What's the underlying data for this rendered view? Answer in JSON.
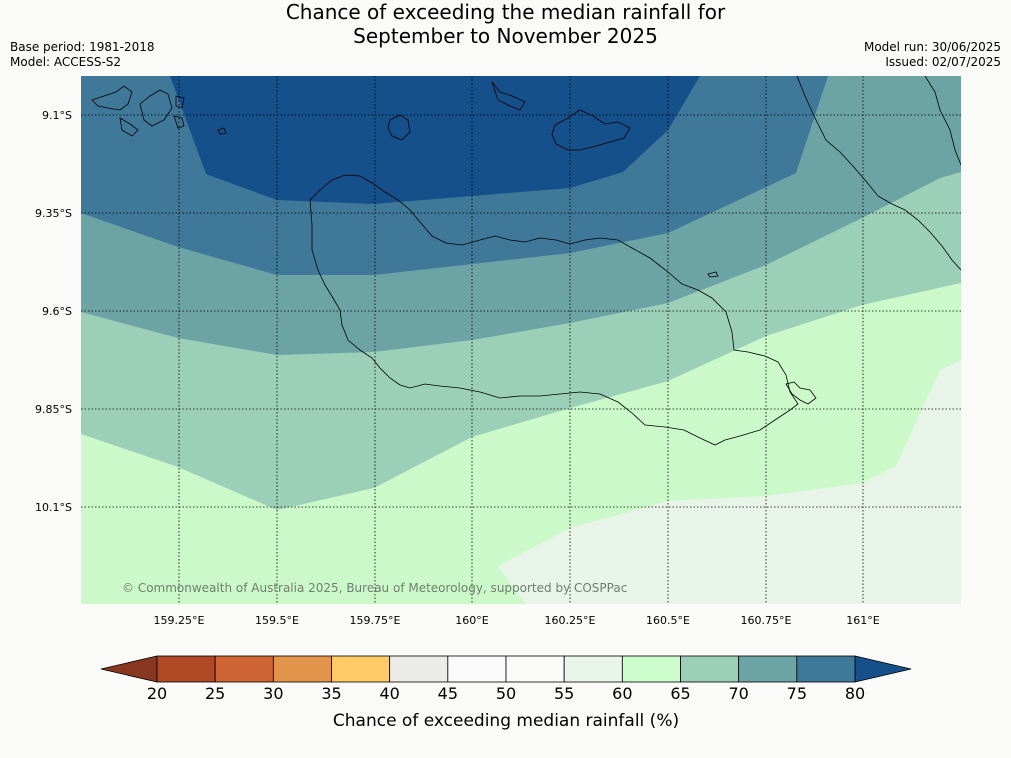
{
  "title": {
    "line1": "Chance of exceeding the median rainfall for",
    "line2": "September to November 2025"
  },
  "meta": {
    "base_period": "Base period: 1981-2018",
    "model": "Model: ACCESS-S2",
    "model_run": "Model run: 30/06/2025",
    "issued": "Issued: 02/07/2025"
  },
  "map": {
    "lat_labels": [
      "9.1°S",
      "9.35°S",
      "9.6°S",
      "9.85°S",
      "10.1°S"
    ],
    "lon_labels": [
      "159.25°E",
      "159.5°E",
      "159.75°E",
      "160°E",
      "160.25°E",
      "160.5°E",
      "160.75°E",
      "161°E"
    ],
    "copyright": "© Commonwealth of Australia 2025, Bureau of Meteorology, supported by COSPPac",
    "zone_colors": {
      "p80": "#15508a",
      "p75": "#3f7899",
      "p70": "#6ca3a5",
      "p65": "#9ccfb8",
      "p60": "#ccf9ca",
      "p55": "#e8f4e7"
    }
  },
  "colorbar": {
    "ticks": [
      "20",
      "25",
      "30",
      "35",
      "40",
      "45",
      "50",
      "55",
      "60",
      "65",
      "70",
      "75",
      "80"
    ],
    "colors": [
      "#b04a26",
      "#cf6534",
      "#e3944b",
      "#fecb66",
      "#ebebe8",
      "#fafbfa",
      "#fbfcfa",
      "#e8f5e8",
      "#ccfccb",
      "#9bcfb8",
      "#6da4a5",
      "#3f799a"
    ],
    "low_color": "#8a3722",
    "high_color": "#15508a",
    "label": "Chance of exceeding median rainfall (%)"
  }
}
